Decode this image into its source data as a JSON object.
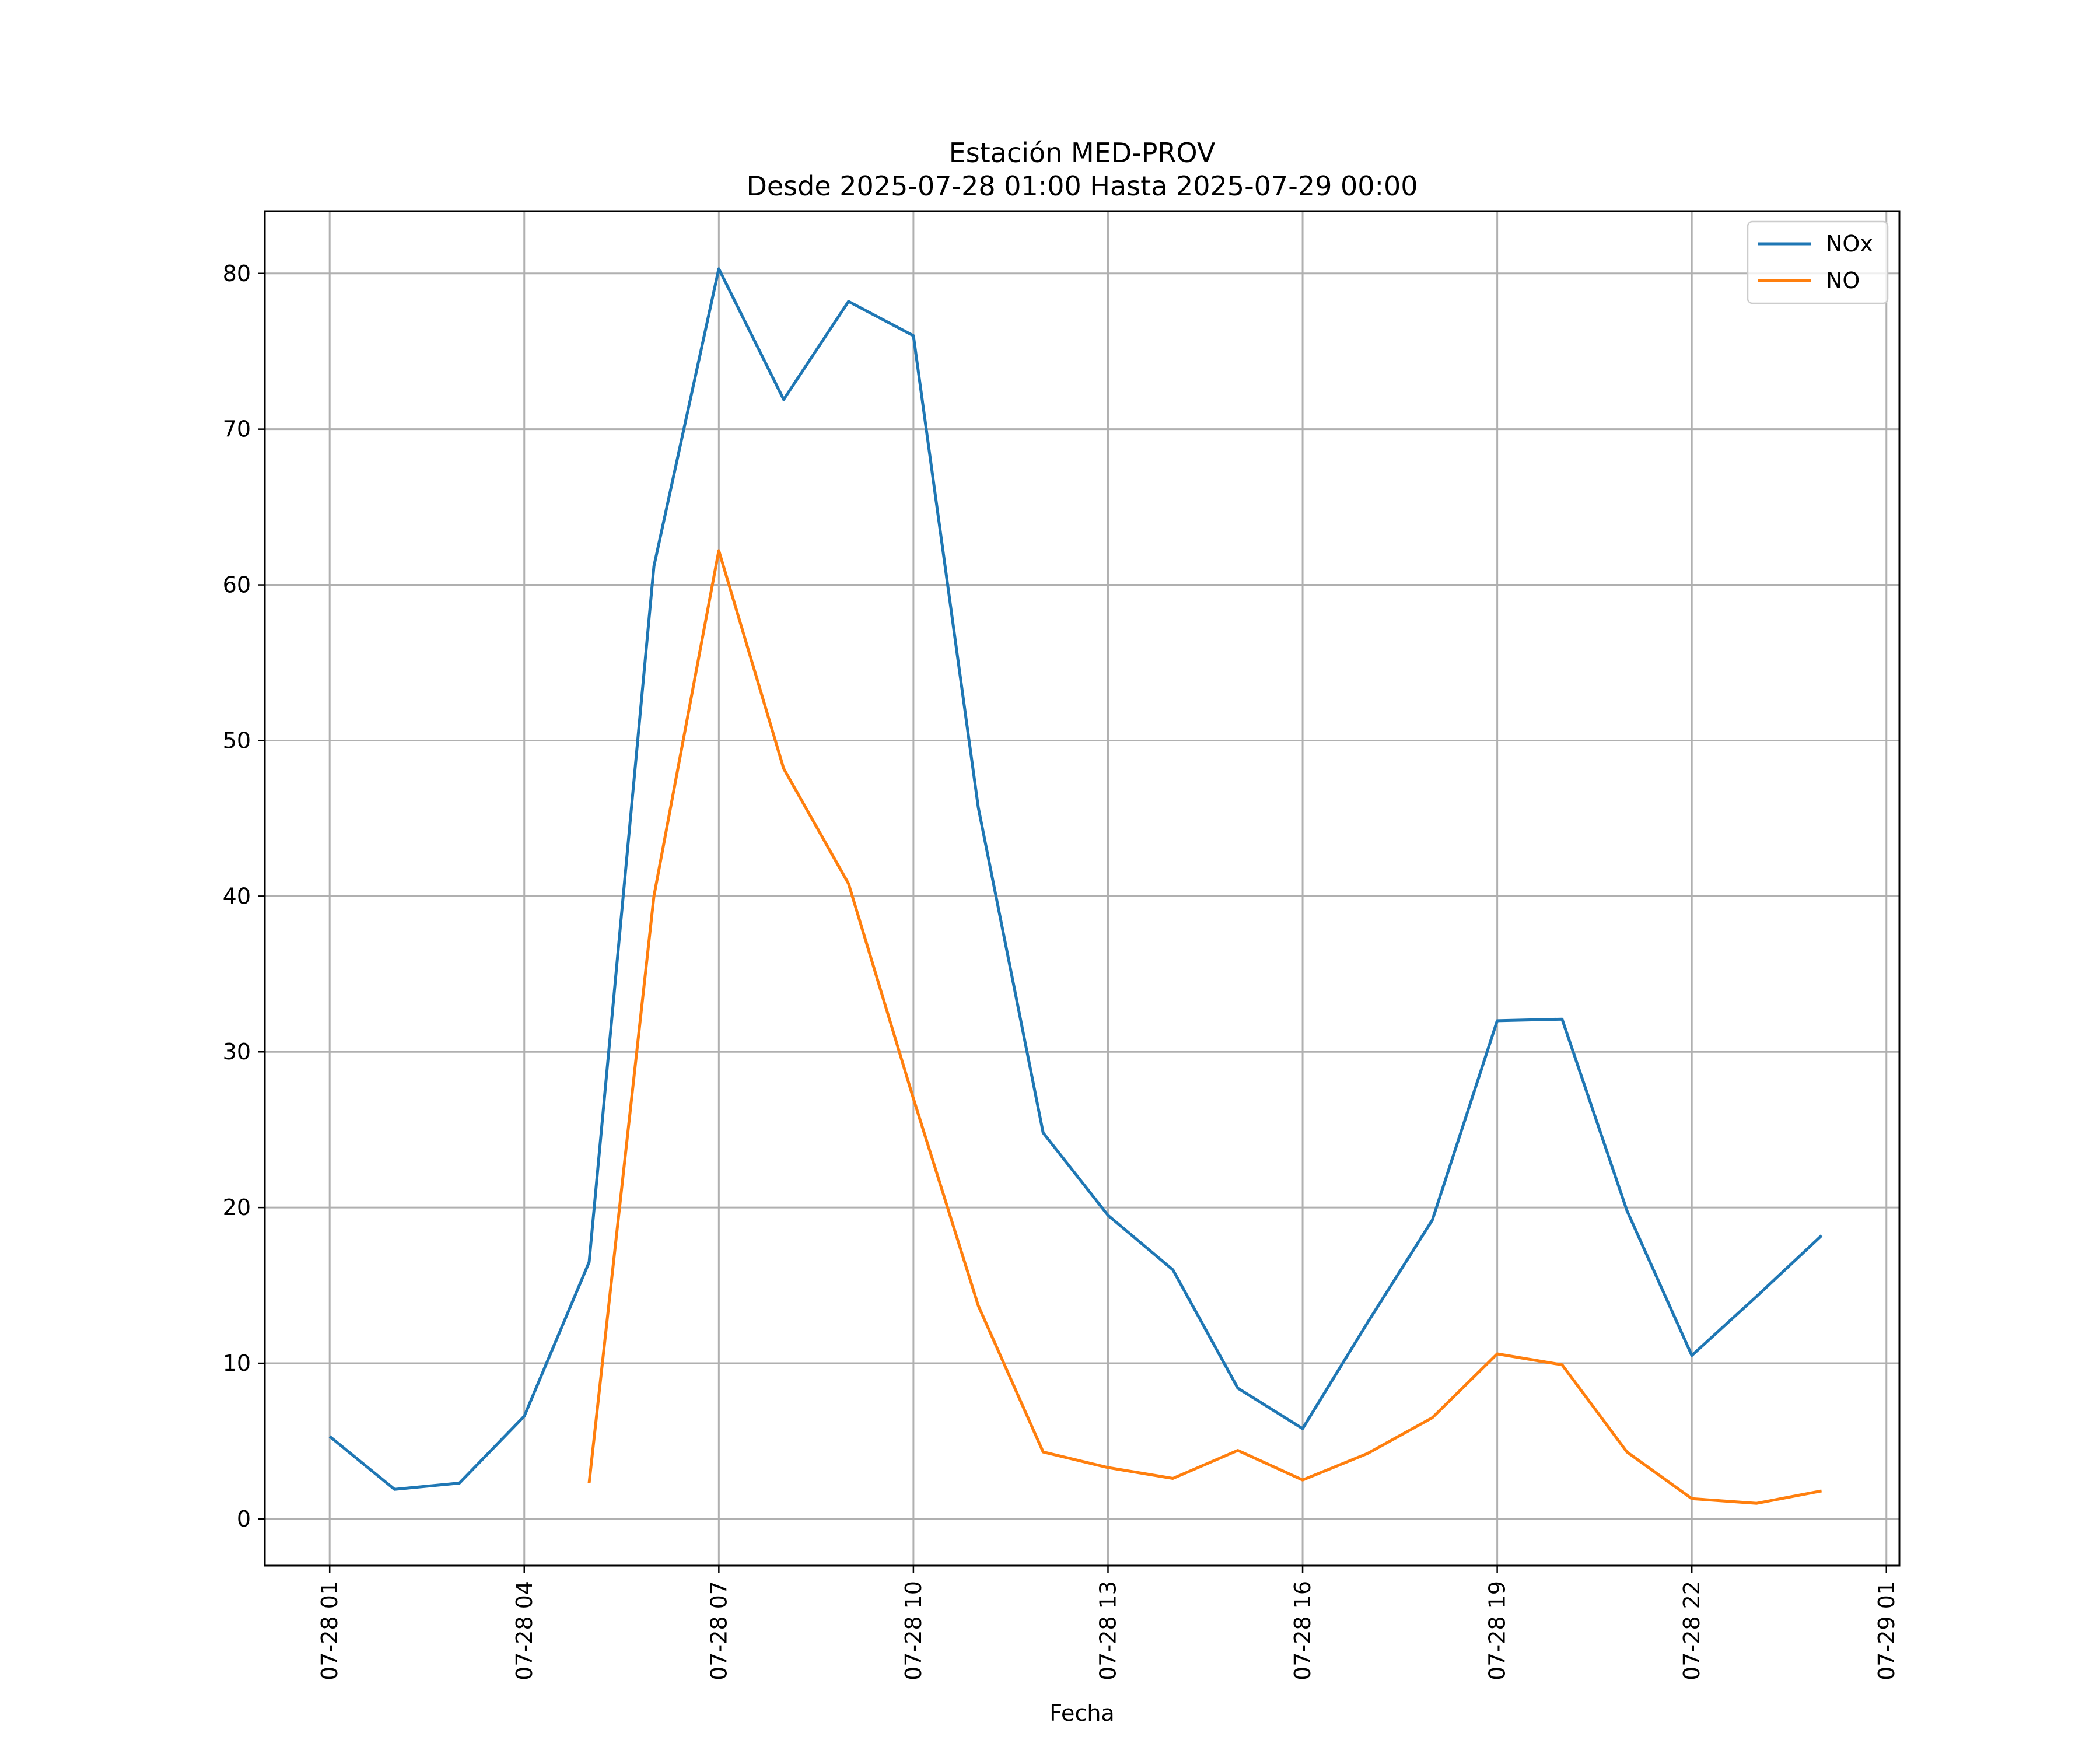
{
  "chart_data": {
    "type": "line",
    "title": "Estación MED-PROV",
    "subtitle": "Desde 2025-07-28 01:00 Hasta 2025-07-29 00:00",
    "xlabel": "Fecha",
    "ylabel": "",
    "ylim": [
      -3,
      84
    ],
    "xlim": [
      "2025-07-28 00:00",
      "2025-07-29 01:12"
    ],
    "grid": true,
    "legend_position": "top-right",
    "yticks": [
      0,
      10,
      20,
      30,
      40,
      50,
      60,
      70,
      80
    ],
    "xticks": [
      {
        "value": "2025-07-28 01:00",
        "label": "07-28 01"
      },
      {
        "value": "2025-07-28 04:00",
        "label": "07-28 04"
      },
      {
        "value": "2025-07-28 07:00",
        "label": "07-28 07"
      },
      {
        "value": "2025-07-28 10:00",
        "label": "07-28 10"
      },
      {
        "value": "2025-07-28 13:00",
        "label": "07-28 13"
      },
      {
        "value": "2025-07-28 16:00",
        "label": "07-28 16"
      },
      {
        "value": "2025-07-28 19:00",
        "label": "07-28 19"
      },
      {
        "value": "2025-07-28 22:00",
        "label": "07-28 22"
      },
      {
        "value": "2025-07-29 01:00",
        "label": "07-29 01"
      }
    ],
    "x": [
      "2025-07-28 01:00",
      "2025-07-28 02:00",
      "2025-07-28 03:00",
      "2025-07-28 04:00",
      "2025-07-28 05:00",
      "2025-07-28 06:00",
      "2025-07-28 07:00",
      "2025-07-28 08:00",
      "2025-07-28 09:00",
      "2025-07-28 10:00",
      "2025-07-28 11:00",
      "2025-07-28 12:00",
      "2025-07-28 13:00",
      "2025-07-28 14:00",
      "2025-07-28 15:00",
      "2025-07-28 16:00",
      "2025-07-28 17:00",
      "2025-07-28 18:00",
      "2025-07-28 19:00",
      "2025-07-28 20:00",
      "2025-07-28 21:00",
      "2025-07-28 22:00",
      "2025-07-28 23:00",
      "2025-07-29 00:00"
    ],
    "series": [
      {
        "name": "NOx",
        "color": "#1f77b4",
        "values": [
          5.3,
          1.9,
          2.3,
          6.6,
          16.5,
          61.2,
          80.3,
          71.9,
          78.2,
          76.0,
          45.7,
          24.8,
          19.5,
          16.0,
          8.4,
          5.8,
          12.6,
          19.2,
          32.0,
          32.1,
          19.8,
          10.5,
          14.3,
          18.2
        ]
      },
      {
        "name": "NO",
        "color": "#ff7f0e",
        "values": [
          null,
          null,
          null,
          null,
          2.3,
          40.0,
          62.2,
          48.2,
          40.8,
          27.0,
          13.7,
          4.3,
          3.3,
          2.6,
          4.4,
          2.5,
          4.2,
          6.5,
          10.6,
          9.9,
          4.3,
          1.3,
          1.0,
          1.8
        ]
      }
    ]
  }
}
